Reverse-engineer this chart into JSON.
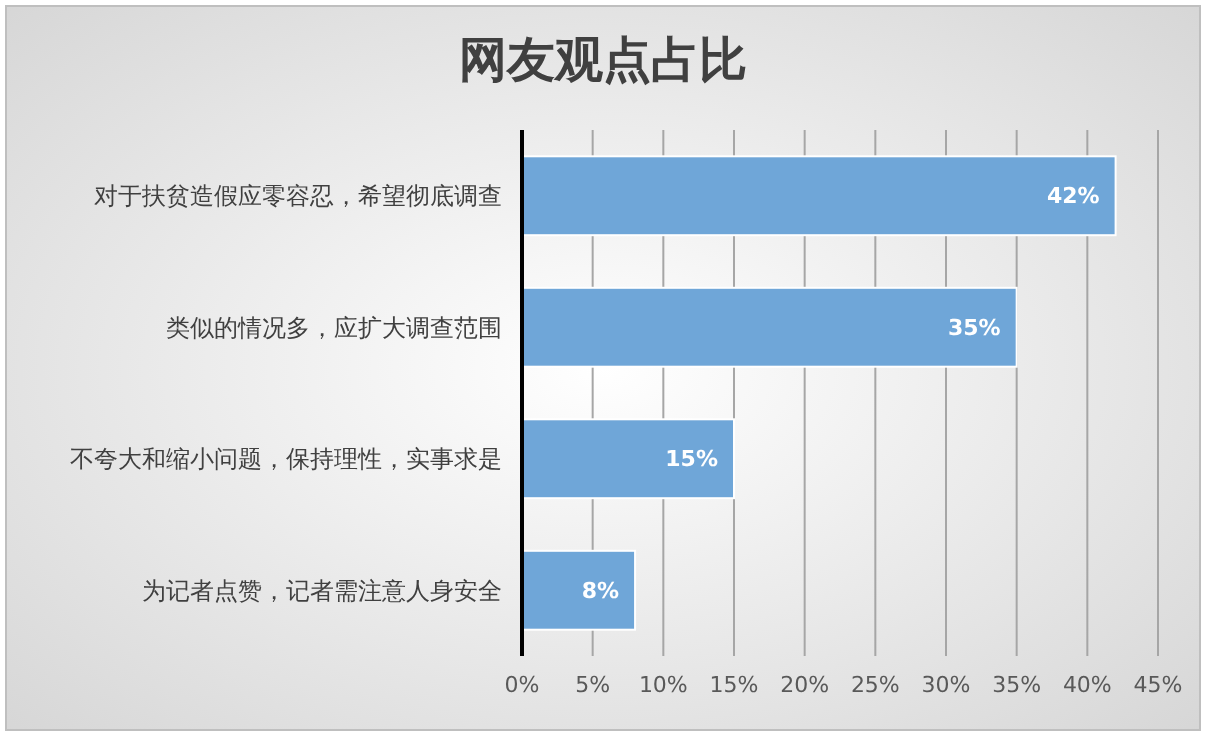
{
  "chart_data": {
    "type": "bar",
    "orientation": "horizontal",
    "title": "网友观点占比",
    "categories": [
      "对于扶贫造假应零容忍，希望彻底调查",
      "类似的情况多，应扩大调查范围",
      "不夸大和缩小问题，保持理性，实事求是",
      "为记者点赞，记者需注意人身安全"
    ],
    "values": [
      42,
      35,
      15,
      8
    ],
    "value_labels": [
      "42%",
      "35%",
      "15%",
      "8%"
    ],
    "color": "#6fa6d8",
    "xlim": [
      0,
      45
    ],
    "xticks": [
      {
        "value": 0,
        "label": "0%"
      },
      {
        "value": 5,
        "label": "5%"
      },
      {
        "value": 10,
        "label": "10%"
      },
      {
        "value": 15,
        "label": "15%"
      },
      {
        "value": 20,
        "label": "20%"
      },
      {
        "value": 25,
        "label": "25%"
      },
      {
        "value": 30,
        "label": "30%"
      },
      {
        "value": 35,
        "label": "35%"
      },
      {
        "value": 40,
        "label": "40%"
      },
      {
        "value": 45,
        "label": "45%"
      }
    ],
    "grid": "x"
  }
}
